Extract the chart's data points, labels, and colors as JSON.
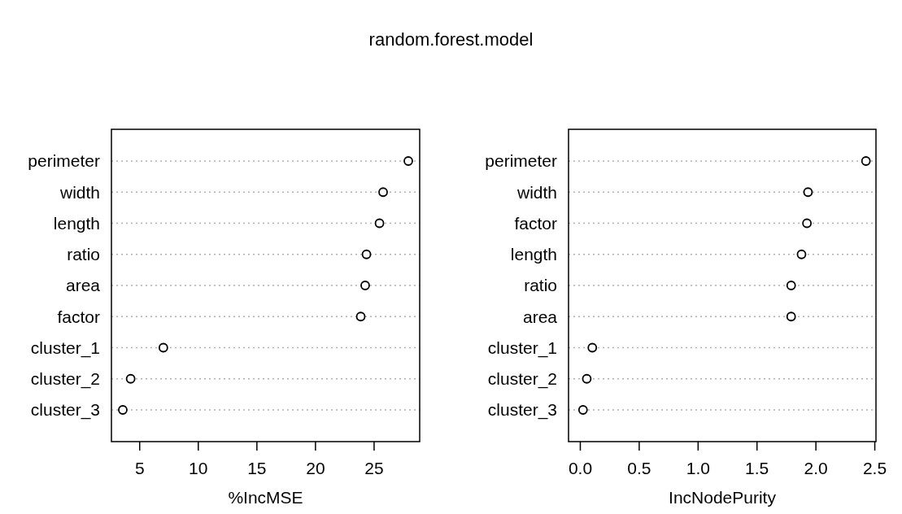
{
  "chart_data": [
    {
      "type": "scatter",
      "title": "random.forest.model",
      "xlabel": "%IncMSE",
      "categories": [
        "perimeter",
        "width",
        "length",
        "ratio",
        "area",
        "factor",
        "cluster_1",
        "cluster_2",
        "cluster_3"
      ],
      "series": [
        {
          "color": "#000000",
          "values": [
            27.92,
            25.77,
            25.46,
            24.35,
            24.24,
            23.86,
            7.02,
            4.23,
            3.56
          ]
        }
      ],
      "orientation": "horizontal",
      "xlim": [
        2.59,
        28.89
      ],
      "xticks": [
        5,
        10,
        15,
        20,
        25
      ],
      "grid": "y",
      "marker": "circle"
    },
    {
      "type": "scatter",
      "xlabel": "IncNodePurity",
      "categories": [
        "perimeter",
        "width",
        "factor",
        "length",
        "ratio",
        "area",
        "cluster_1",
        "cluster_2",
        "cluster_3"
      ],
      "series": [
        {
          "color": "#000000",
          "values": [
            2.425,
            1.933,
            1.924,
            1.878,
            1.79,
            1.79,
            0.102,
            0.055,
            0.023
          ]
        }
      ],
      "orientation": "horizontal",
      "xlim": [
        -0.1,
        2.51
      ],
      "xticks": [
        {
          "value": 0,
          "label": "0.0"
        },
        {
          "value": 0.5,
          "label": "0.5"
        },
        {
          "value": 1,
          "label": "1.0"
        },
        {
          "value": 1.5,
          "label": "1.5"
        },
        {
          "value": 2,
          "label": "2.0"
        },
        {
          "value": 2.5,
          "label": "2.5"
        }
      ],
      "grid": "y",
      "marker": "circle"
    }
  ]
}
